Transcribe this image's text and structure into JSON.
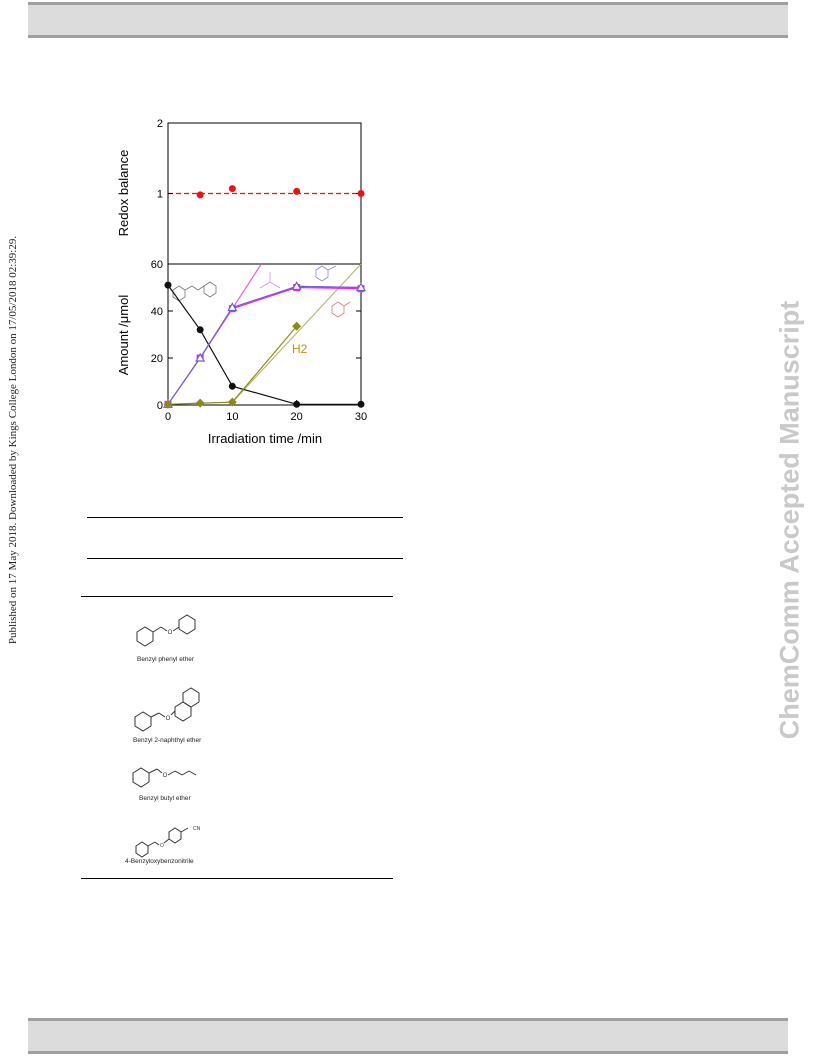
{
  "side_note": "Published on 17 May 2018. Downloaded by Kings College London on 17/05/2018 02:39:29.",
  "watermark": "ChemComm Accepted Manuscript",
  "chart_data": [
    {
      "type": "scatter",
      "ylabel": "Redox balance",
      "ylim": [
        0,
        2
      ],
      "yticks": [
        "2",
        "1"
      ],
      "points": {
        "x": [
          5,
          10,
          20,
          30
        ],
        "y": [
          0.98,
          1.07,
          1.03,
          1.0
        ]
      },
      "reference_line": 1,
      "color": "#ee1111"
    },
    {
      "type": "line",
      "xlabel": "Irradiation time /min",
      "ylabel": "Amount /μmol",
      "ylim": [
        0,
        60
      ],
      "xlim": [
        0,
        30
      ],
      "xticks": [
        "0",
        "10",
        "20",
        "30"
      ],
      "yticks": [
        "0",
        "20",
        "40",
        "60"
      ],
      "annotation": "H2",
      "series": [
        {
          "marker": "circle",
          "color": "#111111",
          "x": [
            0,
            5,
            10,
            20,
            30
          ],
          "y": [
            51,
            32,
            8,
            0.3,
            0.3
          ]
        },
        {
          "marker": "square",
          "color": "#ee22ee",
          "x": [
            0,
            5,
            10,
            20,
            30
          ],
          "y": [
            0.3,
            20,
            41,
            50,
            49.5
          ]
        },
        {
          "marker": "triangle",
          "color": "#6f5fd0",
          "x": [
            0,
            5,
            10,
            20,
            30
          ],
          "y": [
            0.3,
            20,
            41.5,
            50.5,
            50
          ]
        },
        {
          "marker": "diamond",
          "color": "#8a8a1a",
          "x": [
            0,
            5,
            10,
            20
          ],
          "y": [
            0.3,
            0.8,
            1.2,
            33.5
          ]
        }
      ],
      "guide_lines": [
        {
          "color": "#ee55ee",
          "from": [
            10,
            41
          ],
          "to": [
            14.5,
            60
          ]
        },
        {
          "color": "#b8b878",
          "from": [
            10,
            1.2
          ],
          "to": [
            30,
            60
          ]
        },
        {
          "color": "#8877dd",
          "from": [
            20,
            50.5
          ],
          "to": [
            30,
            50
          ]
        }
      ]
    }
  ],
  "compounds": [
    {
      "name": "Benzyl phenyl ether"
    },
    {
      "name": "Benzyl 2-naphthyl ether"
    },
    {
      "name": "Benzyl butyl ether"
    },
    {
      "name": "4-Benzyloxybenzonitrile"
    }
  ]
}
